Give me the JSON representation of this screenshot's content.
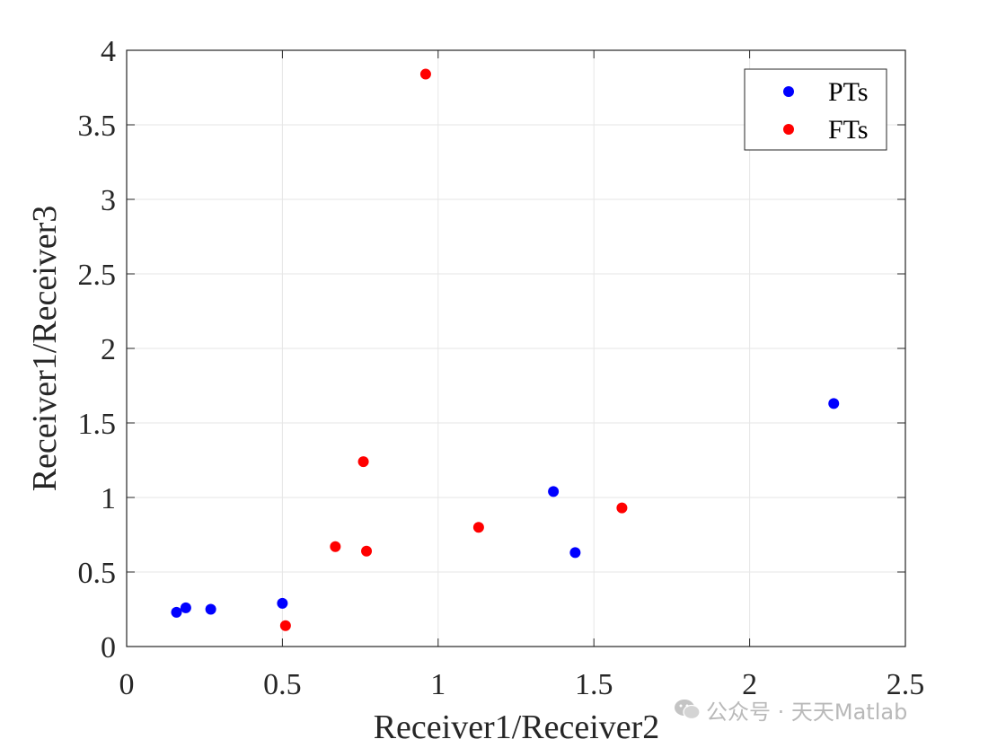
{
  "chart_data": {
    "type": "scatter",
    "xlabel": "Receiver1/Receiver2",
    "ylabel": "Receiver1/Receiver3",
    "xlim": [
      0,
      2.5
    ],
    "ylim": [
      0,
      4
    ],
    "xticks": [
      0,
      0.5,
      1,
      1.5,
      2,
      2.5
    ],
    "xtick_labels": [
      "0",
      "0.5",
      "1",
      "1.5",
      "2",
      "2.5"
    ],
    "yticks": [
      0,
      0.5,
      1,
      1.5,
      2,
      2.5,
      3,
      3.5,
      4
    ],
    "ytick_labels": [
      "0",
      "0.5",
      "1",
      "1.5",
      "2",
      "2.5",
      "3",
      "3.5",
      "4"
    ],
    "grid": true,
    "legend_position": "top-right",
    "series": [
      {
        "name": "PTs",
        "color": "#0000ff",
        "points": [
          {
            "x": 0.16,
            "y": 0.23
          },
          {
            "x": 0.19,
            "y": 0.26
          },
          {
            "x": 0.27,
            "y": 0.25
          },
          {
            "x": 0.5,
            "y": 0.29
          },
          {
            "x": 1.37,
            "y": 1.04
          },
          {
            "x": 1.44,
            "y": 0.63
          },
          {
            "x": 2.27,
            "y": 1.63
          }
        ]
      },
      {
        "name": "FTs",
        "color": "#ff0000",
        "points": [
          {
            "x": 0.51,
            "y": 0.14
          },
          {
            "x": 0.67,
            "y": 0.67
          },
          {
            "x": 0.76,
            "y": 1.24
          },
          {
            "x": 0.77,
            "y": 0.64
          },
          {
            "x": 0.96,
            "y": 3.84
          },
          {
            "x": 1.13,
            "y": 0.8
          },
          {
            "x": 1.59,
            "y": 0.93
          }
        ]
      }
    ]
  },
  "watermark": {
    "text": "公众号 · 天天Matlab",
    "icon": "wechat-icon"
  }
}
